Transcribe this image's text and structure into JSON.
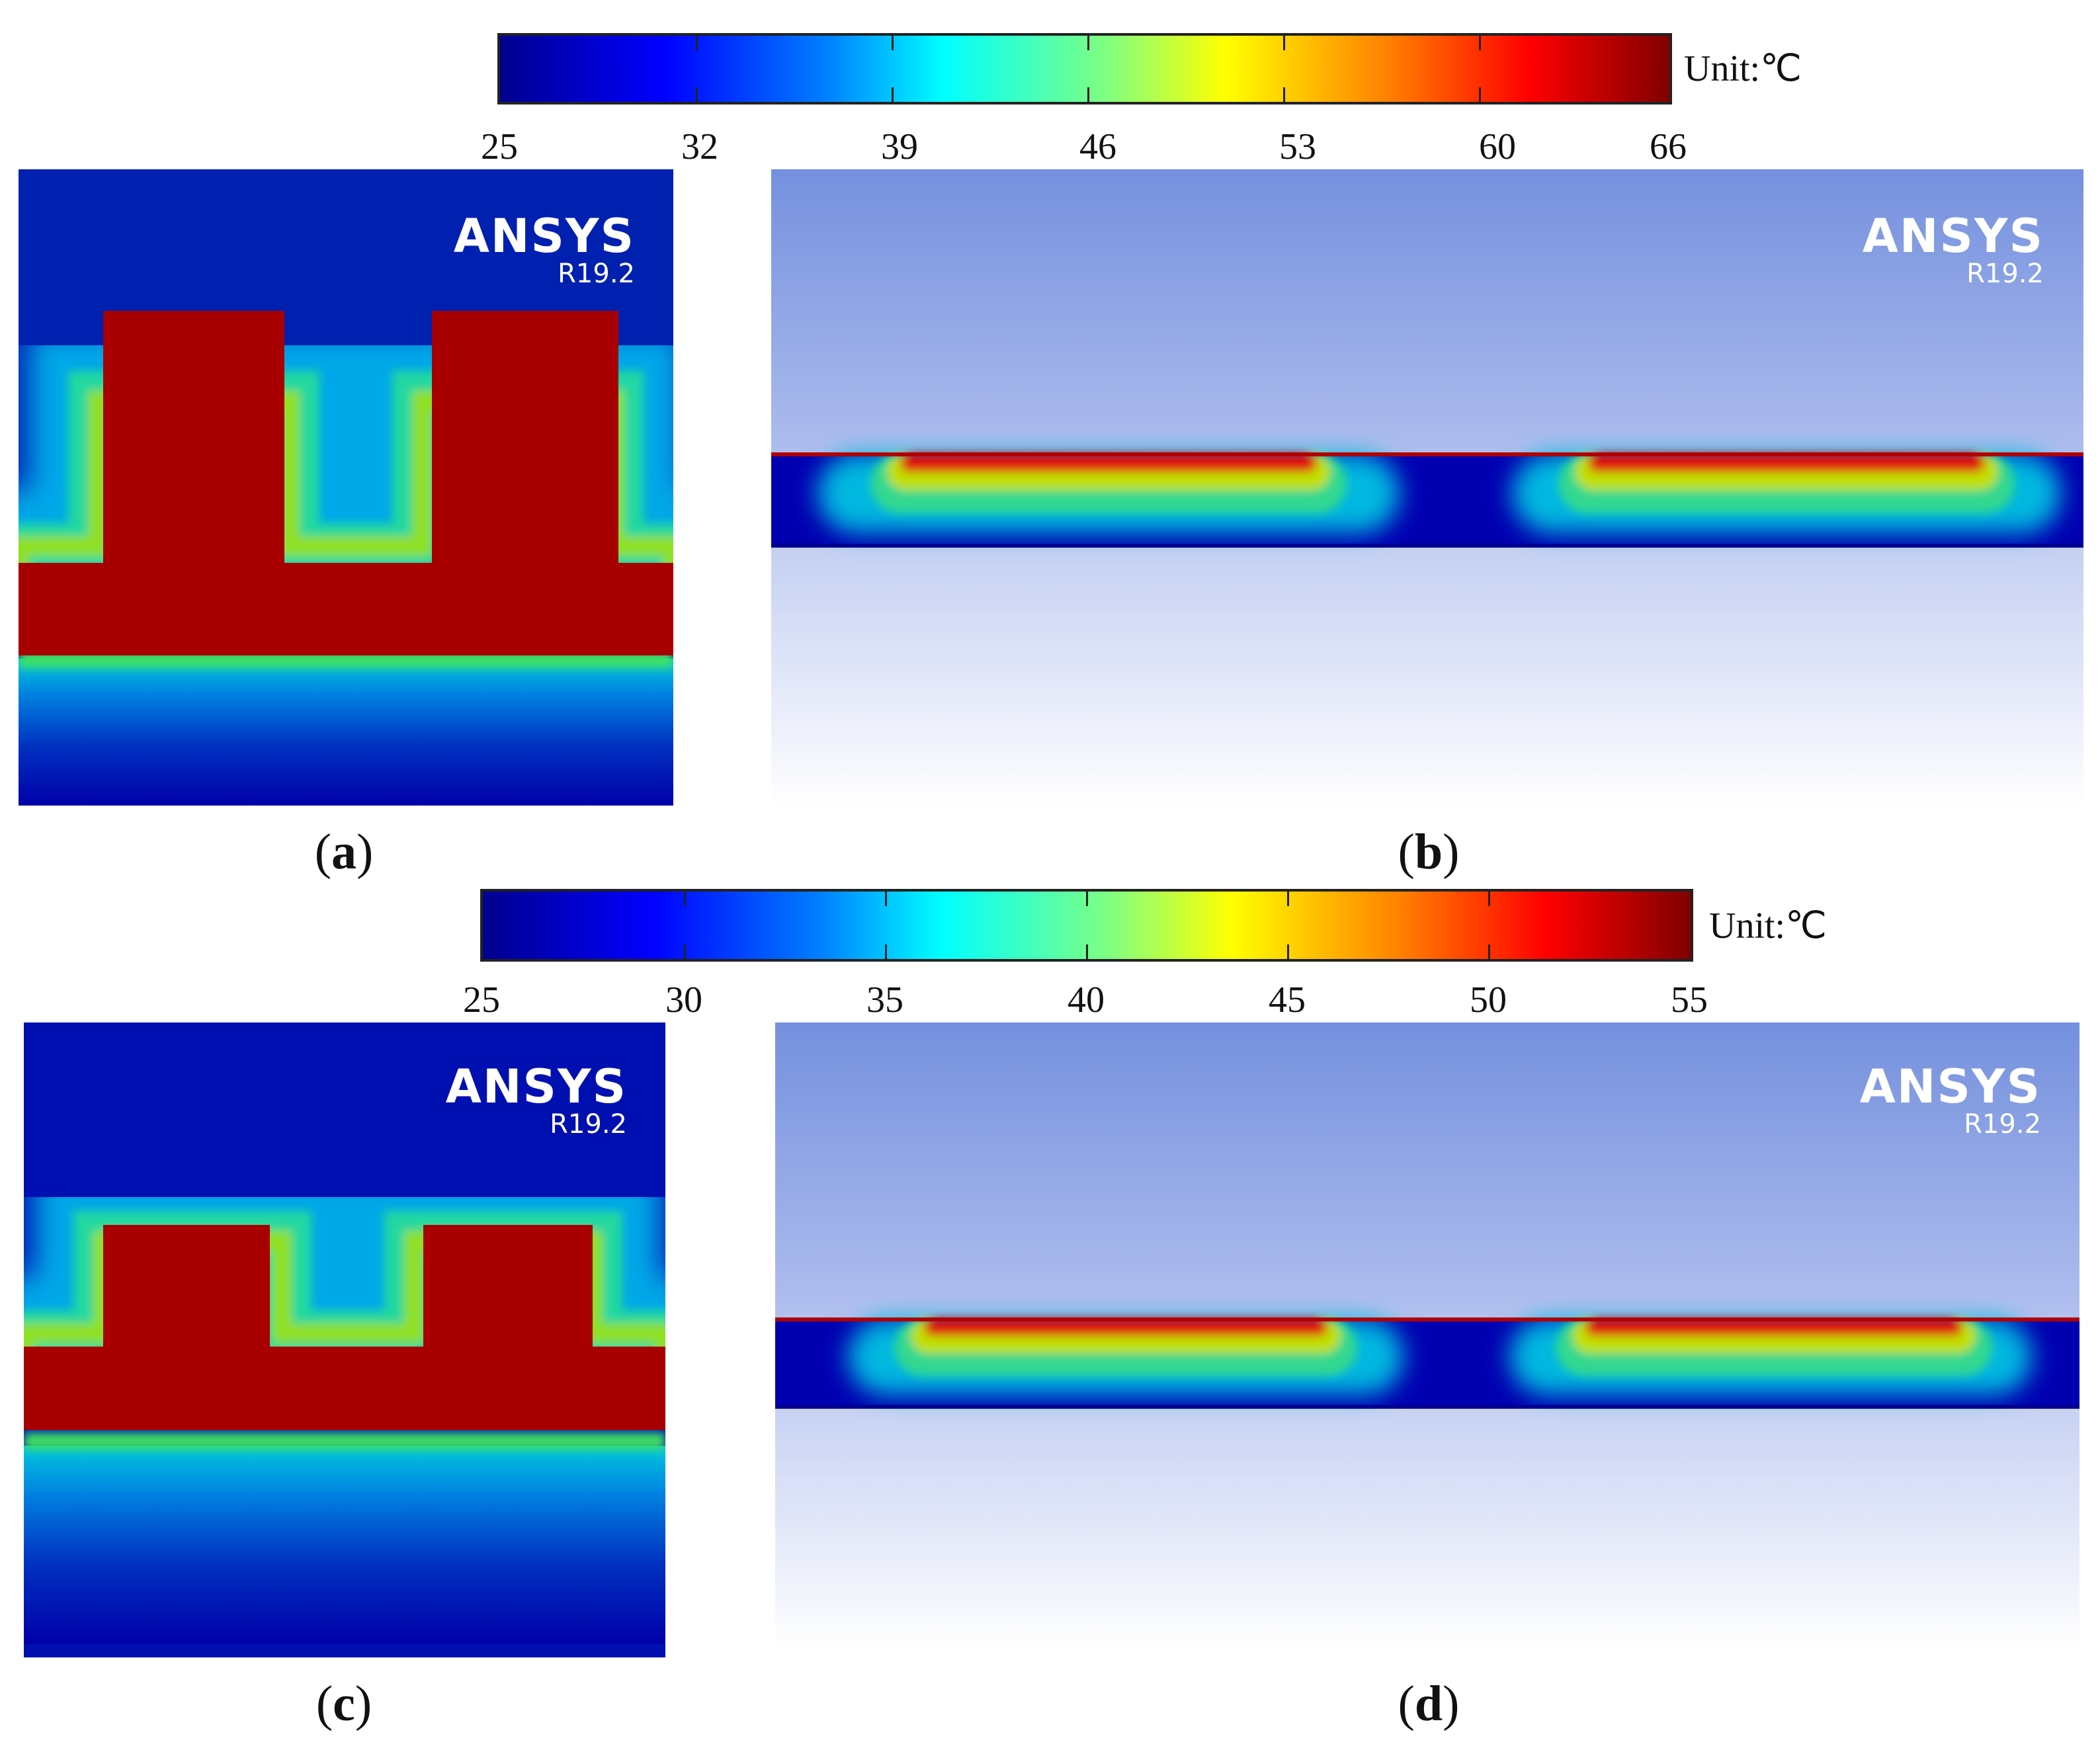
{
  "colorbars": [
    {
      "ticks": [
        "25",
        "32",
        "39",
        "46",
        "53",
        "60",
        "66"
      ],
      "unit": "Unit:℃",
      "range": [
        25,
        66
      ]
    },
    {
      "ticks": [
        "25",
        "30",
        "35",
        "40",
        "45",
        "50",
        "55"
      ],
      "unit": "Unit:℃",
      "range": [
        25,
        55
      ]
    }
  ],
  "panels": {
    "a": {
      "logo": "ANSYS",
      "version": "R19.2",
      "caption_letter": "a"
    },
    "b": {
      "logo": "ANSYS",
      "version": "R19.2",
      "caption_letter": "b"
    },
    "c": {
      "logo": "ANSYS",
      "version": "R19.2",
      "caption_letter": "c"
    },
    "d": {
      "logo": "ANSYS",
      "version": "R19.2",
      "caption_letter": "d"
    }
  },
  "colors": {
    "cold": "#0000a8",
    "hot": "#a80000",
    "background_top": "#7490de",
    "background_bottom": "#ffffff"
  }
}
